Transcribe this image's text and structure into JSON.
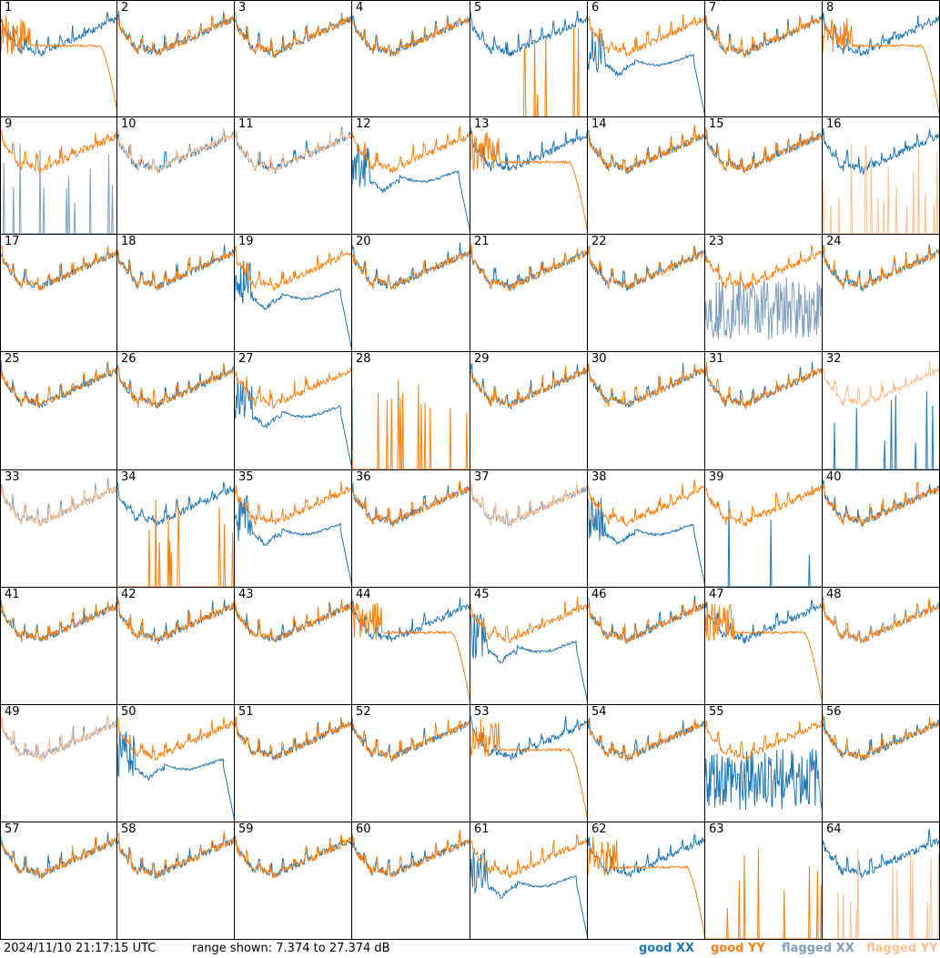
{
  "chart_data": {
    "type": "line",
    "timestamp": "2024/11/10 21:17:15 UTC",
    "range_text": "range shown: 7.374 to 27.374 dB",
    "ylim": [
      7.374,
      27.374
    ],
    "legend": [
      "good XX",
      "good YY",
      "flagged XX",
      "flagged YY"
    ],
    "colors": {
      "good_xx": "#1f77b4",
      "good_yy": "#ff7f0e",
      "flagged_xx": "#7f9fbf",
      "flagged_yy": "#ffbf8f"
    },
    "panels": [
      {
        "label": "1",
        "xx": "normal",
        "yy": "decay"
      },
      {
        "label": "2",
        "xx": "normal",
        "yy": "normal"
      },
      {
        "label": "3",
        "xx": "normal",
        "yy": "normal"
      },
      {
        "label": "4",
        "xx": "normal",
        "yy": "normal"
      },
      {
        "label": "5",
        "xx": "normal",
        "yy": "spikes"
      },
      {
        "label": "6",
        "xx": "dip",
        "yy": "normal"
      },
      {
        "label": "7",
        "xx": "normal",
        "yy": "normal"
      },
      {
        "label": "8",
        "xx": "normal",
        "yy": "decay"
      },
      {
        "label": "9",
        "xx": "spikes",
        "yy": "normal",
        "flag_xx": true
      },
      {
        "label": "10",
        "xx": "normal",
        "yy": "normal",
        "flag_yy": true
      },
      {
        "label": "11",
        "xx": "normal",
        "yy": "normal",
        "flag_yy": true
      },
      {
        "label": "12",
        "xx": "dip",
        "yy": "normal"
      },
      {
        "label": "13",
        "xx": "normal",
        "yy": "decay"
      },
      {
        "label": "14",
        "xx": "normal",
        "yy": "normal"
      },
      {
        "label": "15",
        "xx": "normal",
        "yy": "normal"
      },
      {
        "label": "16",
        "xx": "normal",
        "yy": "spikes",
        "flag_yy": true
      },
      {
        "label": "17",
        "xx": "normal",
        "yy": "normal"
      },
      {
        "label": "18",
        "xx": "normal",
        "yy": "normal"
      },
      {
        "label": "19",
        "xx": "dip",
        "yy": "normal"
      },
      {
        "label": "20",
        "xx": "normal",
        "yy": "normal"
      },
      {
        "label": "21",
        "xx": "normal",
        "yy": "normal"
      },
      {
        "label": "22",
        "xx": "normal",
        "yy": "normal"
      },
      {
        "label": "23",
        "xx": "noise",
        "yy": "normal",
        "flag_xx": true
      },
      {
        "label": "24",
        "xx": "normal",
        "yy": "normal"
      },
      {
        "label": "25",
        "xx": "normal",
        "yy": "normal"
      },
      {
        "label": "26",
        "xx": "normal",
        "yy": "normal"
      },
      {
        "label": "27",
        "xx": "dip",
        "yy": "normal"
      },
      {
        "label": "28",
        "xx": "none",
        "yy": "spikes"
      },
      {
        "label": "29",
        "xx": "normal",
        "yy": "normal"
      },
      {
        "label": "30",
        "xx": "normal",
        "yy": "normal"
      },
      {
        "label": "31",
        "xx": "normal",
        "yy": "normal"
      },
      {
        "label": "32",
        "xx": "spikes",
        "yy": "normal",
        "flag_yy": true
      },
      {
        "label": "33",
        "xx": "normal",
        "yy": "normal",
        "flag_xx": true,
        "flag_yy": true
      },
      {
        "label": "34",
        "xx": "normal",
        "yy": "spikes"
      },
      {
        "label": "35",
        "xx": "dip",
        "yy": "normal"
      },
      {
        "label": "36",
        "xx": "normal",
        "yy": "normal"
      },
      {
        "label": "37",
        "xx": "normal",
        "yy": "normal",
        "flag_xx": true,
        "flag_yy": true
      },
      {
        "label": "38",
        "xx": "dip",
        "yy": "normal"
      },
      {
        "label": "39",
        "xx": "spikes",
        "yy": "normal"
      },
      {
        "label": "40",
        "xx": "normal",
        "yy": "normal"
      },
      {
        "label": "41",
        "xx": "normal",
        "yy": "normal"
      },
      {
        "label": "42",
        "xx": "normal",
        "yy": "normal"
      },
      {
        "label": "43",
        "xx": "normal",
        "yy": "normal"
      },
      {
        "label": "44",
        "xx": "normal",
        "yy": "decay"
      },
      {
        "label": "45",
        "xx": "dip",
        "yy": "normal"
      },
      {
        "label": "46",
        "xx": "normal",
        "yy": "normal"
      },
      {
        "label": "47",
        "xx": "normal",
        "yy": "decay"
      },
      {
        "label": "48",
        "xx": "normal",
        "yy": "normal",
        "flag_xx": true
      },
      {
        "label": "49",
        "xx": "normal",
        "yy": "normal",
        "flag_xx": true,
        "flag_yy": true
      },
      {
        "label": "50",
        "xx": "dip",
        "yy": "normal"
      },
      {
        "label": "51",
        "xx": "normal",
        "yy": "normal"
      },
      {
        "label": "52",
        "xx": "normal",
        "yy": "normal"
      },
      {
        "label": "53",
        "xx": "normal",
        "yy": "decay"
      },
      {
        "label": "54",
        "xx": "normal",
        "yy": "normal"
      },
      {
        "label": "55",
        "xx": "noise",
        "yy": "normal"
      },
      {
        "label": "56",
        "xx": "normal",
        "yy": "normal"
      },
      {
        "label": "57",
        "xx": "normal",
        "yy": "normal"
      },
      {
        "label": "58",
        "xx": "normal",
        "yy": "normal"
      },
      {
        "label": "59",
        "xx": "normal",
        "yy": "normal"
      },
      {
        "label": "60",
        "xx": "normal",
        "yy": "normal"
      },
      {
        "label": "61",
        "xx": "dip",
        "yy": "normal"
      },
      {
        "label": "62",
        "xx": "normal",
        "yy": "decay"
      },
      {
        "label": "63",
        "xx": "none",
        "yy": "spikes"
      },
      {
        "label": "64",
        "xx": "normal",
        "yy": "spikes",
        "flag_yy": true
      }
    ]
  }
}
